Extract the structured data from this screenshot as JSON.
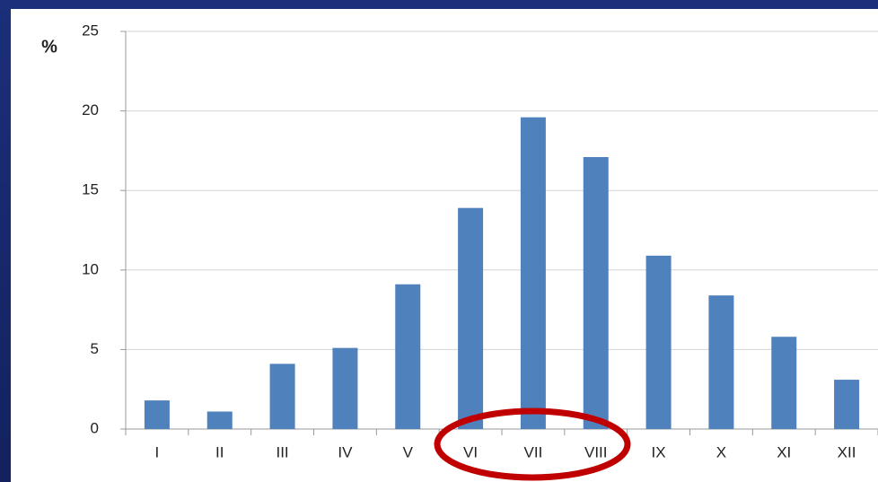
{
  "chart_data": {
    "type": "bar",
    "y_label": "%",
    "categories": [
      "I",
      "II",
      "III",
      "IV",
      "V",
      "VI",
      "VII",
      "VIII",
      "IX",
      "X",
      "XI",
      "XII"
    ],
    "values": [
      1.8,
      1.1,
      4.1,
      5.1,
      9.1,
      13.9,
      19.6,
      17.1,
      10.9,
      8.4,
      5.8,
      3.1
    ],
    "color": "#4f81bd",
    "ylim": [
      0,
      25
    ],
    "yticks": [
      0,
      5,
      10,
      15,
      20,
      25
    ],
    "grid": true
  }
}
